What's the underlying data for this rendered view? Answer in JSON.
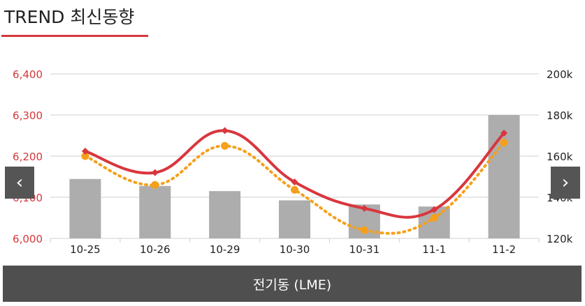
{
  "header": {
    "title": "TREND 최신동향"
  },
  "nav": {
    "prev_symbol": "‹",
    "next_symbol": "›",
    "prev_icon": "chevron-left-icon",
    "next_icon": "chevron-right-icon"
  },
  "footer": {
    "label": "전기동 (LME)"
  },
  "colors": {
    "accent": "#d4373c",
    "line_primary": "#d9363e",
    "line_secondary": "#f5a01a",
    "bars": "#adadad",
    "left_axis_text": "#d4373c",
    "right_axis_text": "#222222",
    "grid": "#cfcfcf"
  },
  "chart_data": {
    "type": "bar",
    "categories": [
      "10-25",
      "10-26",
      "10-29",
      "10-30",
      "10-31",
      "11-1",
      "11-2"
    ],
    "left_axis": {
      "ticks": [
        "6,000",
        "6,100",
        "6,200",
        "6,300",
        "6,400"
      ],
      "ylim": [
        6000,
        6400
      ]
    },
    "right_axis": {
      "ticks": [
        "120k",
        "140k",
        "160k",
        "180k",
        "200k"
      ],
      "ylim": [
        120000,
        200000
      ]
    },
    "grid": true,
    "legend": "none",
    "series": [
      {
        "type": "bar",
        "axis": "right",
        "values": [
          148900,
          145500,
          143000,
          138500,
          136500,
          135500,
          180000
        ]
      },
      {
        "type": "line",
        "style": "solid",
        "marker": "diamond",
        "axis": "left",
        "values": [
          6212,
          6160,
          6262,
          6137,
          6073,
          6070,
          6256
        ]
      },
      {
        "type": "line",
        "style": "dotted",
        "marker": "circle",
        "axis": "left",
        "values": [
          6200,
          6130,
          6225,
          6118,
          6020,
          6050,
          6233
        ]
      }
    ]
  }
}
